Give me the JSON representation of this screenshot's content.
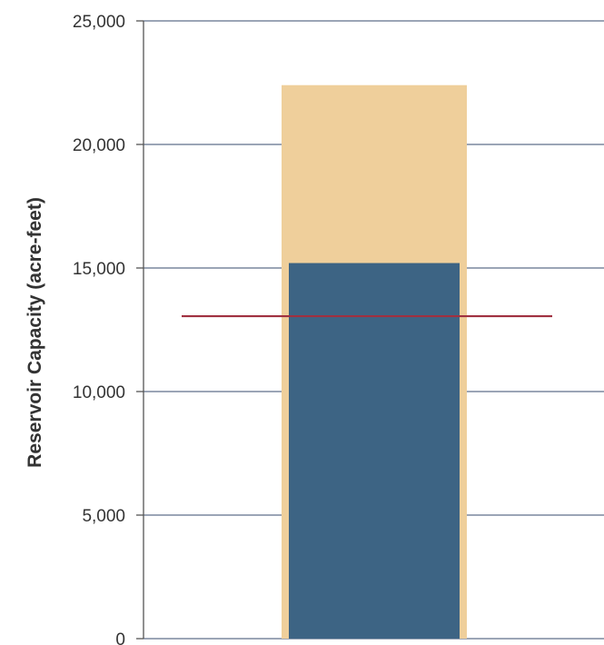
{
  "chart_data": {
    "type": "bar",
    "title": "",
    "xlabel": "",
    "ylabel": "Reservoir Capacity (acre-feet)",
    "ylim": [
      0,
      25000
    ],
    "yticks": [
      0,
      5000,
      10000,
      15000,
      20000,
      25000
    ],
    "ytick_labels": [
      "0",
      "5,000",
      "10,000",
      "15,000",
      "20,000",
      "25,000"
    ],
    "grid": true,
    "legend": "none",
    "bars": [
      {
        "role": "total-capacity",
        "value": 22400,
        "color": "#efcf9b"
      },
      {
        "role": "current-storage",
        "value": 15200,
        "color": "#3d6484"
      }
    ],
    "reference_line": {
      "value": 13050,
      "color": "#a03040"
    },
    "grid_color": "#5f6f8a"
  }
}
